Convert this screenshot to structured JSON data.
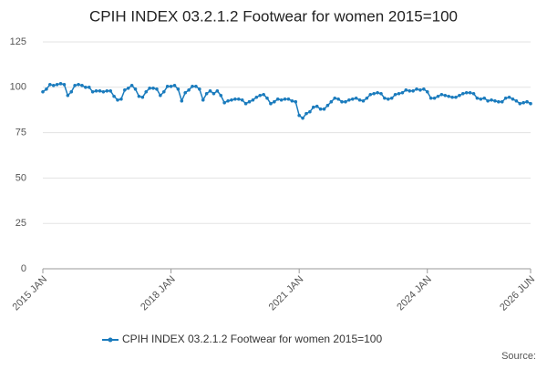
{
  "chart_data": {
    "type": "line",
    "title": "CPIH INDEX 03.2.1.2 Footwear for women 2015=100",
    "source": "Source:",
    "categories": [
      "2015 JAN",
      null,
      null,
      null,
      null,
      null,
      null,
      null,
      null,
      null,
      null,
      null,
      null,
      null,
      null,
      null,
      null,
      null,
      null,
      null,
      null,
      null,
      null,
      null,
      null,
      null,
      null,
      null,
      null,
      null,
      null,
      null,
      null,
      null,
      null,
      null,
      "2018 JAN",
      null,
      null,
      null,
      null,
      null,
      null,
      null,
      null,
      null,
      null,
      null,
      null,
      null,
      null,
      null,
      null,
      null,
      null,
      null,
      null,
      null,
      null,
      null,
      null,
      null,
      null,
      null,
      null,
      null,
      null,
      null,
      null,
      null,
      null,
      null,
      "2021 JAN",
      null,
      null,
      null,
      null,
      null,
      null,
      null,
      null,
      null,
      null,
      null,
      null,
      null,
      null,
      null,
      null,
      null,
      null,
      null,
      null,
      null,
      null,
      null,
      null,
      null,
      null,
      null,
      null,
      null,
      null,
      null,
      null,
      null,
      null,
      null,
      "2024 JAN",
      null,
      null,
      null,
      null,
      null,
      null,
      null,
      null,
      null,
      null,
      null,
      null,
      null,
      null,
      null,
      null,
      null,
      null,
      null,
      null,
      null,
      null,
      null,
      null,
      null,
      null,
      null,
      null,
      "2026 JUN"
    ],
    "series": [
      {
        "name": "CPIH INDEX 03.2.1.2 Footwear for women 2015=100",
        "color": "#1a7bbd",
        "values": [
          97.5,
          99,
          101.5,
          101,
          101.5,
          102,
          101.5,
          95.5,
          97.5,
          101,
          101.5,
          101,
          100,
          100,
          97.5,
          98,
          98,
          97.5,
          98,
          98,
          95,
          93,
          93.5,
          98.5,
          99.5,
          101,
          99,
          95,
          94.5,
          97.5,
          99.5,
          99.5,
          99,
          95.5,
          97.5,
          100.5,
          100.5,
          101,
          99,
          92.5,
          97,
          98.5,
          100.5,
          100.5,
          99,
          93,
          96.5,
          98,
          96.5,
          98,
          95.5,
          91.5,
          92.5,
          93,
          93.5,
          93.5,
          93,
          91,
          92,
          93,
          94.5,
          95.5,
          96,
          94,
          91,
          92,
          93.5,
          93,
          93.5,
          93.5,
          92.5,
          92,
          84.5,
          83,
          85.5,
          86.5,
          89,
          89.5,
          88,
          88,
          90,
          92,
          94,
          93.5,
          92,
          92,
          93,
          93.5,
          94,
          93,
          92.5,
          94,
          96,
          96.5,
          97,
          96.5,
          94,
          93.5,
          94,
          96,
          96.5,
          97,
          98.5,
          98,
          98,
          99,
          98.5,
          99,
          97.5,
          94,
          94,
          95,
          96,
          95.5,
          95,
          94.5,
          94.5,
          95.5,
          96.5,
          97,
          97,
          96.5,
          94,
          93.5,
          94,
          92.5,
          93,
          92.5,
          92,
          92,
          94,
          94.5,
          93.5,
          92.5,
          91,
          91.5,
          92,
          91
        ]
      }
    ],
    "ylim": [
      0,
      125
    ],
    "yticks": [
      0,
      25,
      50,
      75,
      100,
      125
    ],
    "grid": true
  }
}
